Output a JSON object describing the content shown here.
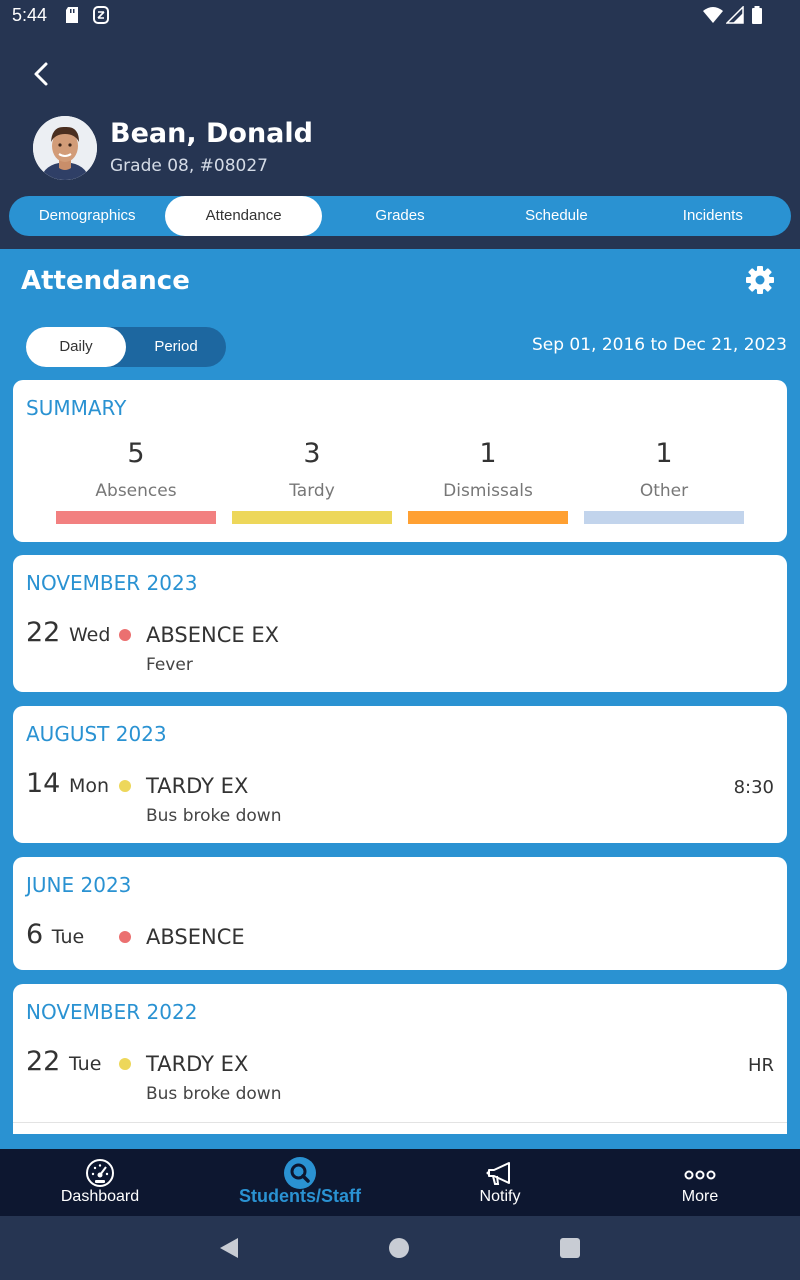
{
  "status_bar": {
    "time": "5:44"
  },
  "student": {
    "name": "Bean, Donald",
    "subtitle": "Grade 08, #08027"
  },
  "tabs": [
    "Demographics",
    "Attendance",
    "Grades",
    "Schedule",
    "Incidents"
  ],
  "active_tab": "Attendance",
  "section": {
    "title": "Attendance",
    "toggle": {
      "options": [
        "Daily",
        "Period"
      ],
      "selected": "Daily"
    },
    "date_range": "Sep 01, 2016 to Dec 21, 2023"
  },
  "summary": {
    "title": "SUMMARY",
    "items": [
      {
        "count": "5",
        "label": "Absences",
        "color": "#f28080"
      },
      {
        "count": "3",
        "label": "Tardy",
        "color": "#edd75a"
      },
      {
        "count": "1",
        "label": "Dismissals",
        "color": "#ffa032"
      },
      {
        "count": "1",
        "label": "Other",
        "color": "#c2d4ec"
      }
    ]
  },
  "records": [
    {
      "month": "NOVEMBER 2023",
      "day": "22",
      "weekday": "Wed",
      "type": "ABSENCE EX",
      "reason": "Fever",
      "right": "",
      "dot_color": "#eb7070"
    },
    {
      "month": "AUGUST 2023",
      "day": "14",
      "weekday": "Mon",
      "type": "TARDY EX",
      "reason": "Bus broke down",
      "right": "8:30",
      "dot_color": "#edd75a"
    },
    {
      "month": "JUNE 2023",
      "day": "6",
      "weekday": "Tue",
      "type": "ABSENCE",
      "reason": "",
      "right": "",
      "dot_color": "#eb7070"
    },
    {
      "month": "NOVEMBER 2022",
      "day": "22",
      "weekday": "Tue",
      "type": "TARDY EX",
      "reason": "Bus broke down",
      "right": "HR",
      "dot_color": "#edd75a"
    }
  ],
  "bottom_nav": [
    {
      "label": "Dashboard",
      "icon": "dashboard-gauge-icon"
    },
    {
      "label": "Students/Staff",
      "icon": "search-icon"
    },
    {
      "label": "Notify",
      "icon": "megaphone-icon"
    },
    {
      "label": "More",
      "icon": "more-dots-icon"
    }
  ],
  "bottom_nav_active": "Students/Staff",
  "colors": {
    "header": "#263552",
    "accent": "#2a92d2",
    "toggle_dark": "#1d67a0",
    "nav_bg": "#0d1730"
  }
}
